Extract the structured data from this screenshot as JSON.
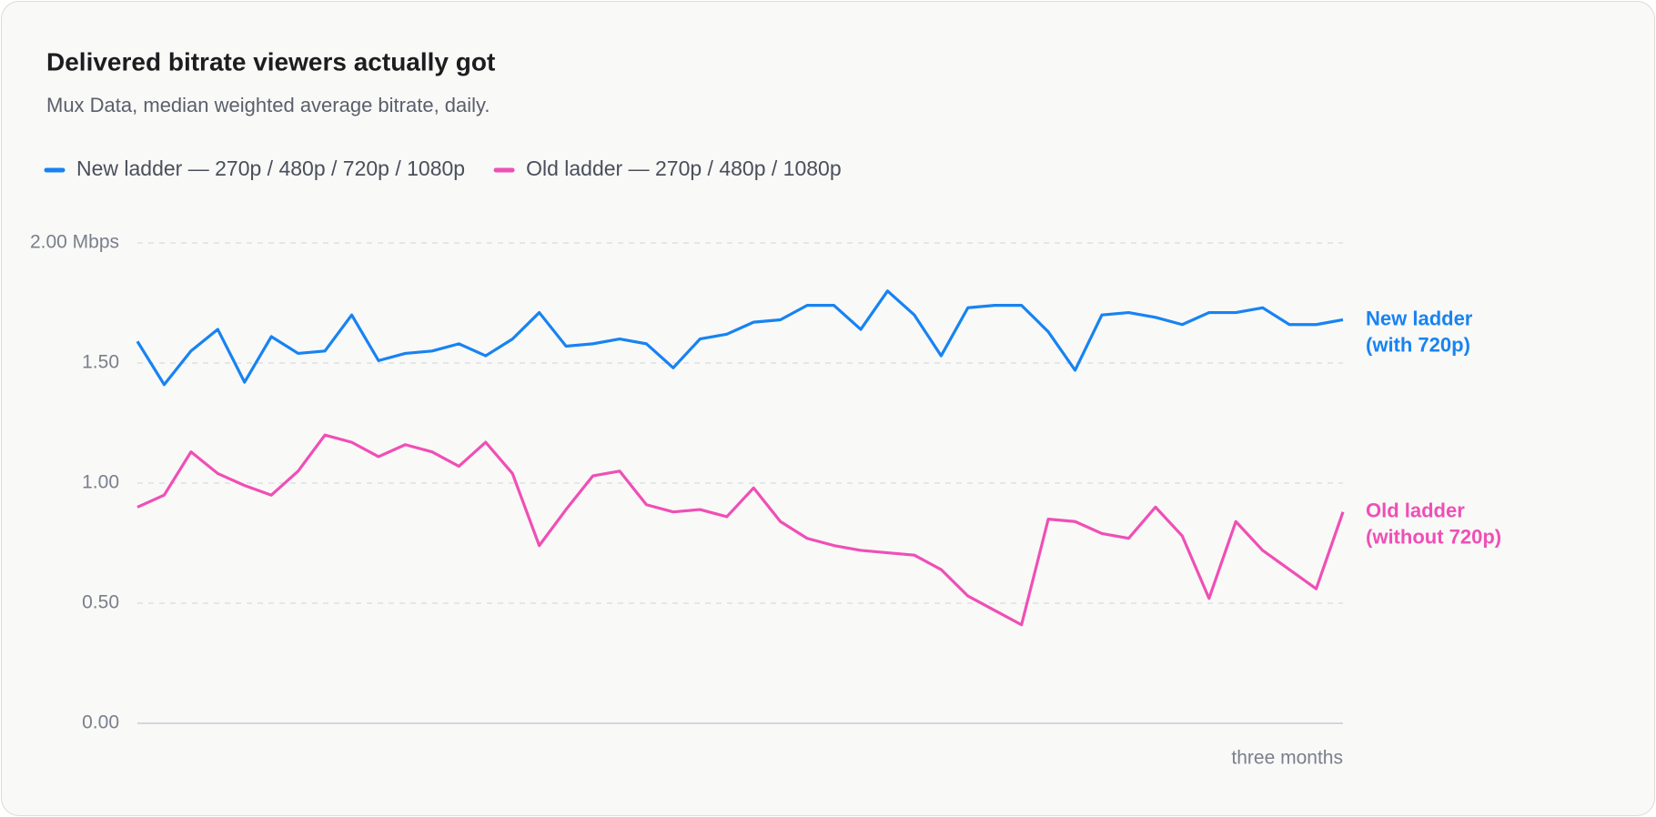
{
  "chart_data": {
    "type": "line",
    "title": "Delivered bitrate viewers actually got",
    "subtitle": "Mux Data, median weighted average bitrate, daily.",
    "x_label": "three months",
    "categories": [
      null,
      null,
      null,
      null,
      null,
      null,
      null,
      null,
      null,
      null,
      null,
      null,
      null,
      null,
      null,
      null,
      null,
      null,
      null,
      null,
      null,
      null,
      null,
      null,
      null,
      null,
      null,
      null,
      null,
      null,
      null,
      null,
      null,
      null,
      null,
      null,
      null,
      null,
      null,
      null,
      null,
      null,
      null,
      null,
      null,
      null
    ],
    "series": [
      {
        "name": "New ladder — 270p / 480p / 720p / 1080p",
        "end_label": [
          "New ladder",
          "(with 720p)"
        ],
        "color": "#1783f2",
        "values": [
          1.59,
          1.41,
          1.55,
          1.64,
          1.42,
          1.61,
          1.54,
          1.55,
          1.7,
          1.51,
          1.54,
          1.55,
          1.58,
          1.53,
          1.6,
          1.71,
          1.57,
          1.58,
          1.6,
          1.58,
          1.48,
          1.6,
          1.62,
          1.67,
          1.68,
          1.74,
          1.74,
          1.64,
          1.8,
          1.7,
          1.53,
          1.73,
          1.74,
          1.74,
          1.63,
          1.47,
          1.7,
          1.71,
          1.69,
          1.66,
          1.71,
          1.71,
          1.73,
          1.66,
          1.66,
          1.68
        ]
      },
      {
        "name": "Old ladder — 270p / 480p / 1080p",
        "end_label": [
          "Old ladder",
          "(without 720p)"
        ],
        "color": "#ef4fb6",
        "values": [
          0.9,
          0.95,
          1.13,
          1.04,
          0.99,
          0.95,
          1.05,
          1.2,
          1.17,
          1.11,
          1.16,
          1.13,
          1.07,
          1.17,
          1.04,
          0.74,
          0.89,
          1.03,
          1.05,
          0.91,
          0.88,
          0.89,
          0.86,
          0.98,
          0.84,
          0.77,
          0.74,
          0.72,
          0.71,
          0.7,
          0.64,
          0.53,
          0.47,
          0.41,
          0.85,
          0.84,
          0.79,
          0.77,
          0.9,
          0.78,
          0.52,
          0.84,
          0.72,
          0.64,
          0.56,
          0.88
        ]
      }
    ],
    "ylim": [
      0,
      2
    ],
    "yticks": [
      {
        "value": 0,
        "label": "0.00"
      },
      {
        "value": 0.5,
        "label": "0.50"
      },
      {
        "value": 1,
        "label": "1.00"
      },
      {
        "value": 1.5,
        "label": "1.50"
      },
      {
        "value": 2,
        "label": "2.00 Mbps"
      }
    ],
    "grid": true
  }
}
